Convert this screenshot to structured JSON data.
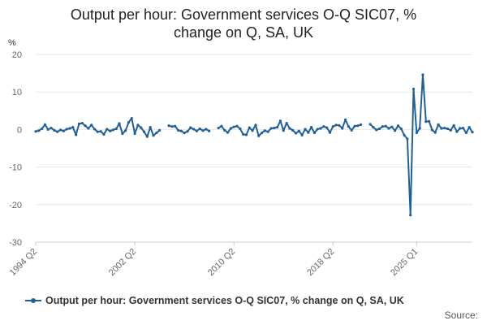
{
  "colors": {
    "series": "#206095",
    "grid": "#e6e6e6",
    "axis": "#cccccc"
  },
  "chart_data": {
    "type": "line",
    "title": "Output per hour: Government services O-Q SIC07, % change on Q, SA, UK",
    "title_lines": [
      "Output per hour: Government services O-Q SIC07, %",
      "change on Q, SA, UK"
    ],
    "ylabel": "%",
    "xlabel": "",
    "ylim": [
      -30,
      20
    ],
    "yticks": [
      20,
      10,
      0,
      -10,
      -20,
      -30
    ],
    "grid": true,
    "legend_position": "bottom",
    "source_label": "Source:",
    "x_tick_labels": [
      "1994 Q2",
      "2002 Q2",
      "2010 Q2",
      "2018 Q2",
      "2025 Q1"
    ],
    "start_quarter": "1994 Q2",
    "series": [
      {
        "name": "Output per hour: Government services O-Q SIC07, % change on Q, SA, UK",
        "values": [
          -0.5,
          -0.3,
          0.2,
          1.3,
          0.0,
          0.4,
          -0.2,
          -0.6,
          -0.1,
          -0.4,
          0.1,
          0.3,
          0.6,
          -1.4,
          1.5,
          1.7,
          1.0,
          0.3,
          1.2,
          0.1,
          -0.6,
          -0.5,
          -1.3,
          0.1,
          -0.4,
          -0.1,
          0.2,
          1.6,
          -1.1,
          -0.3,
          1.9,
          3.0,
          -1.1,
          1.2,
          0.5,
          -0.6,
          -1.9,
          0.6,
          -1.6,
          -0.9,
          -0.2,
          null,
          null,
          1.0,
          0.8,
          0.9,
          -0.2,
          -0.4,
          -0.9,
          -0.5,
          0.5,
          0.1,
          -0.4,
          0.2,
          -0.3,
          0.1,
          -0.4,
          null,
          null,
          0.4,
          0.9,
          -0.2,
          -0.8,
          0.3,
          0.7,
          0.9,
          0.2,
          -1.3,
          -1.4,
          0.5,
          -0.3,
          1.2,
          -1.7,
          -0.9,
          -0.3,
          -0.6,
          0.3,
          0.4,
          0.6,
          2.3,
          -0.3,
          1.7,
          0.3,
          -0.2,
          -1.0,
          -0.4,
          -1.5,
          0.1,
          -0.8,
          0.6,
          -0.9,
          0.1,
          0.3,
          0.8,
          0.5,
          -0.8,
          0.8,
          1.2,
          1.1,
          0.3,
          2.6,
          0.8,
          -0.2,
          0.9,
          1.0,
          1.3,
          null,
          null,
          1.4,
          0.6,
          -0.1,
          0.2,
          0.8,
          0.9,
          0.3,
          0.7,
          -0.3,
          1.0,
          0.2,
          -1.5,
          -2.5,
          -22.8,
          10.8,
          -0.9,
          0.3,
          14.6,
          2.1,
          2.2,
          -0.1,
          -0.8,
          1.3,
          0.3,
          0.4,
          0.2,
          -0.2,
          1.1,
          -0.6,
          0.3,
          0.4,
          -0.9,
          0.6,
          -0.7
        ]
      }
    ]
  }
}
